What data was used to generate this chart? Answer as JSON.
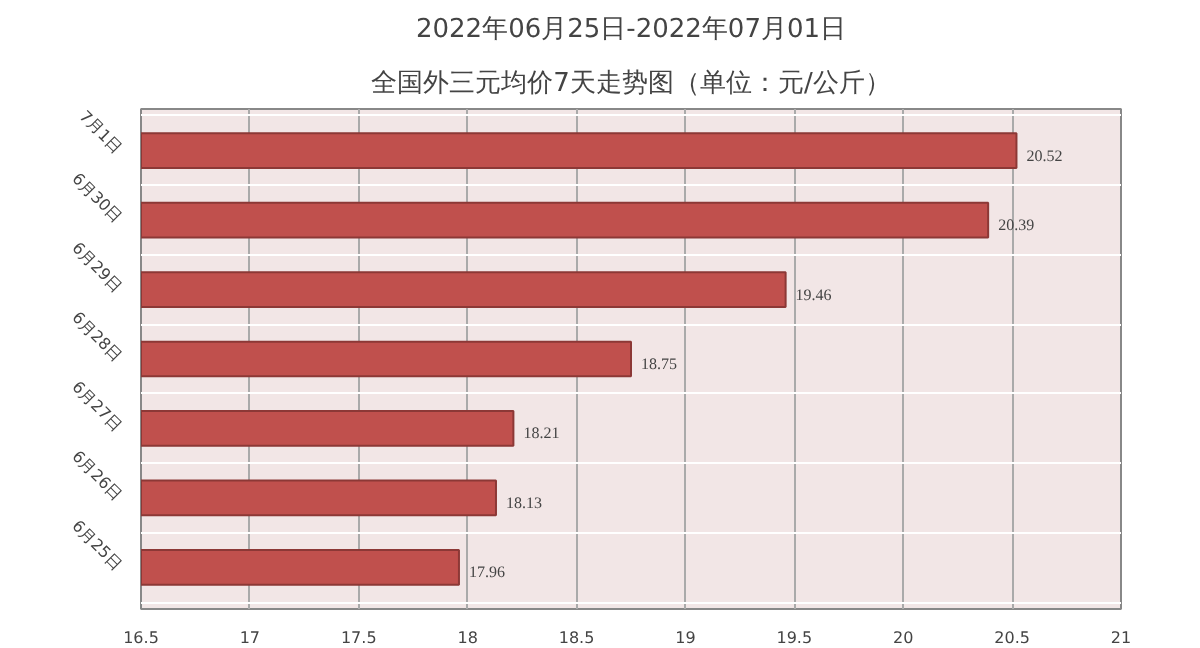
{
  "chart_data": {
    "type": "bar",
    "orientation": "horizontal",
    "title": "2022年06月25日-2022年07月01日",
    "subtitle": "全国外三元均价7天走势图（单位：元/公斤）",
    "categories": [
      "7月1日",
      "6月30日",
      "6月29日",
      "6月28日",
      "6月27日",
      "6月26日",
      "6月25日"
    ],
    "values": [
      20.52,
      20.39,
      19.46,
      18.75,
      18.21,
      18.13,
      17.96
    ],
    "color": "#c0504d",
    "xlim": [
      16.5,
      21
    ],
    "xticks": [
      16.5,
      17,
      17.5,
      18,
      18.5,
      19,
      19.5,
      20,
      20.5,
      21
    ],
    "grid": true,
    "data_labels": true
  }
}
